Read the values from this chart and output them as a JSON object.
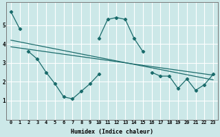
{
  "xlabel": "Humidex (Indice chaleur)",
  "background_color": "#cce8e8",
  "line_color": "#1a6b6b",
  "grid_color": "#ffffff",
  "xlim": [
    -0.5,
    23.5
  ],
  "ylim": [
    0,
    6.2
  ],
  "xticks": [
    0,
    1,
    2,
    3,
    4,
    5,
    6,
    7,
    8,
    9,
    10,
    11,
    12,
    13,
    14,
    15,
    16,
    17,
    18,
    19,
    20,
    21,
    22,
    23
  ],
  "yticks": [
    1,
    2,
    3,
    4,
    5
  ],
  "series": [
    {
      "x": [
        0,
        1
      ],
      "y": [
        5.7,
        4.8
      ]
    },
    {
      "x": [
        2,
        3,
        4,
        5,
        6,
        7,
        8,
        9,
        10
      ],
      "y": [
        3.6,
        3.2,
        2.5,
        1.9,
        1.2,
        1.1,
        1.5,
        1.9,
        2.4
      ]
    },
    {
      "x": [
        10,
        11,
        12,
        13,
        14,
        15
      ],
      "y": [
        4.3,
        5.3,
        5.4,
        5.3,
        4.3,
        3.6
      ]
    },
    {
      "x": [
        16,
        17,
        18,
        19,
        20,
        21,
        22,
        23
      ],
      "y": [
        2.5,
        2.3,
        2.3,
        1.65,
        2.15,
        1.55,
        1.85,
        2.4
      ]
    },
    {
      "x": [
        0,
        23
      ],
      "y": [
        3.85,
        2.35
      ]
    },
    {
      "x": [
        0,
        23
      ],
      "y": [
        4.2,
        2.1
      ]
    }
  ]
}
